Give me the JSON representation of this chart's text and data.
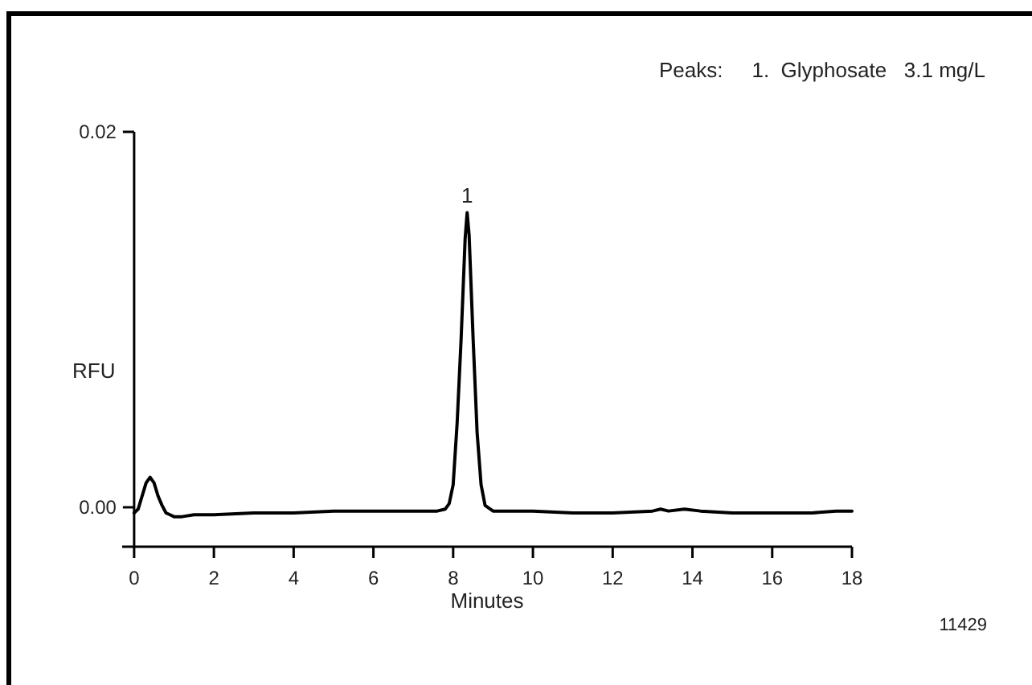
{
  "chart_data": {
    "type": "line",
    "xlabel": "Minutes",
    "ylabel": "RFU",
    "xlim": [
      -0.3,
      18
    ],
    "ylim": [
      -0.0021,
      0.02
    ],
    "xticks": [
      0,
      2,
      4,
      6,
      8,
      10,
      12,
      14,
      16,
      18
    ],
    "yticks": [
      {
        "value": 0,
        "label": "0.00"
      },
      {
        "value": 0.02,
        "label": "0.02"
      }
    ],
    "grid": false,
    "marker": "none",
    "line_style": "solid",
    "series": [
      {
        "color": "#000000",
        "x": [
          0,
          0.1,
          0.2,
          0.3,
          0.4,
          0.5,
          0.6,
          0.7,
          0.8,
          0.9,
          1.0,
          1.2,
          1.5,
          2,
          3,
          4,
          5,
          6,
          7,
          7.6,
          7.8,
          7.9,
          8.0,
          8.1,
          8.2,
          8.3,
          8.35,
          8.4,
          8.5,
          8.6,
          8.7,
          8.8,
          9.0,
          10,
          11,
          12,
          13,
          13.2,
          13.4,
          13.8,
          14.2,
          15,
          16,
          17,
          17.6,
          18
        ],
        "values": [
          -0.0003,
          -0.0001,
          0.0006,
          0.0013,
          0.0016,
          0.0013,
          0.0006,
          0.0001,
          -0.0003,
          -0.0004,
          -0.0005,
          -0.0005,
          -0.0004,
          -0.0004,
          -0.0003,
          -0.0003,
          -0.0002,
          -0.0002,
          -0.0002,
          -0.0002,
          -0.0001,
          0.0002,
          0.0012,
          0.0045,
          0.009,
          0.0143,
          0.0157,
          0.0145,
          0.009,
          0.004,
          0.0012,
          0.0001,
          -0.0002,
          -0.0002,
          -0.0003,
          -0.0003,
          -0.0002,
          -0.0001,
          -0.0002,
          -0.0001,
          -0.0002,
          -0.0003,
          -0.0003,
          -0.0003,
          -0.0002,
          -0.0002
        ]
      }
    ],
    "annotations": [
      {
        "text": "1",
        "x": 8.35,
        "y": 0.0157
      },
      "Peaks:     1.  Glyphosate   3.1 mg/L",
      "11429"
    ]
  }
}
